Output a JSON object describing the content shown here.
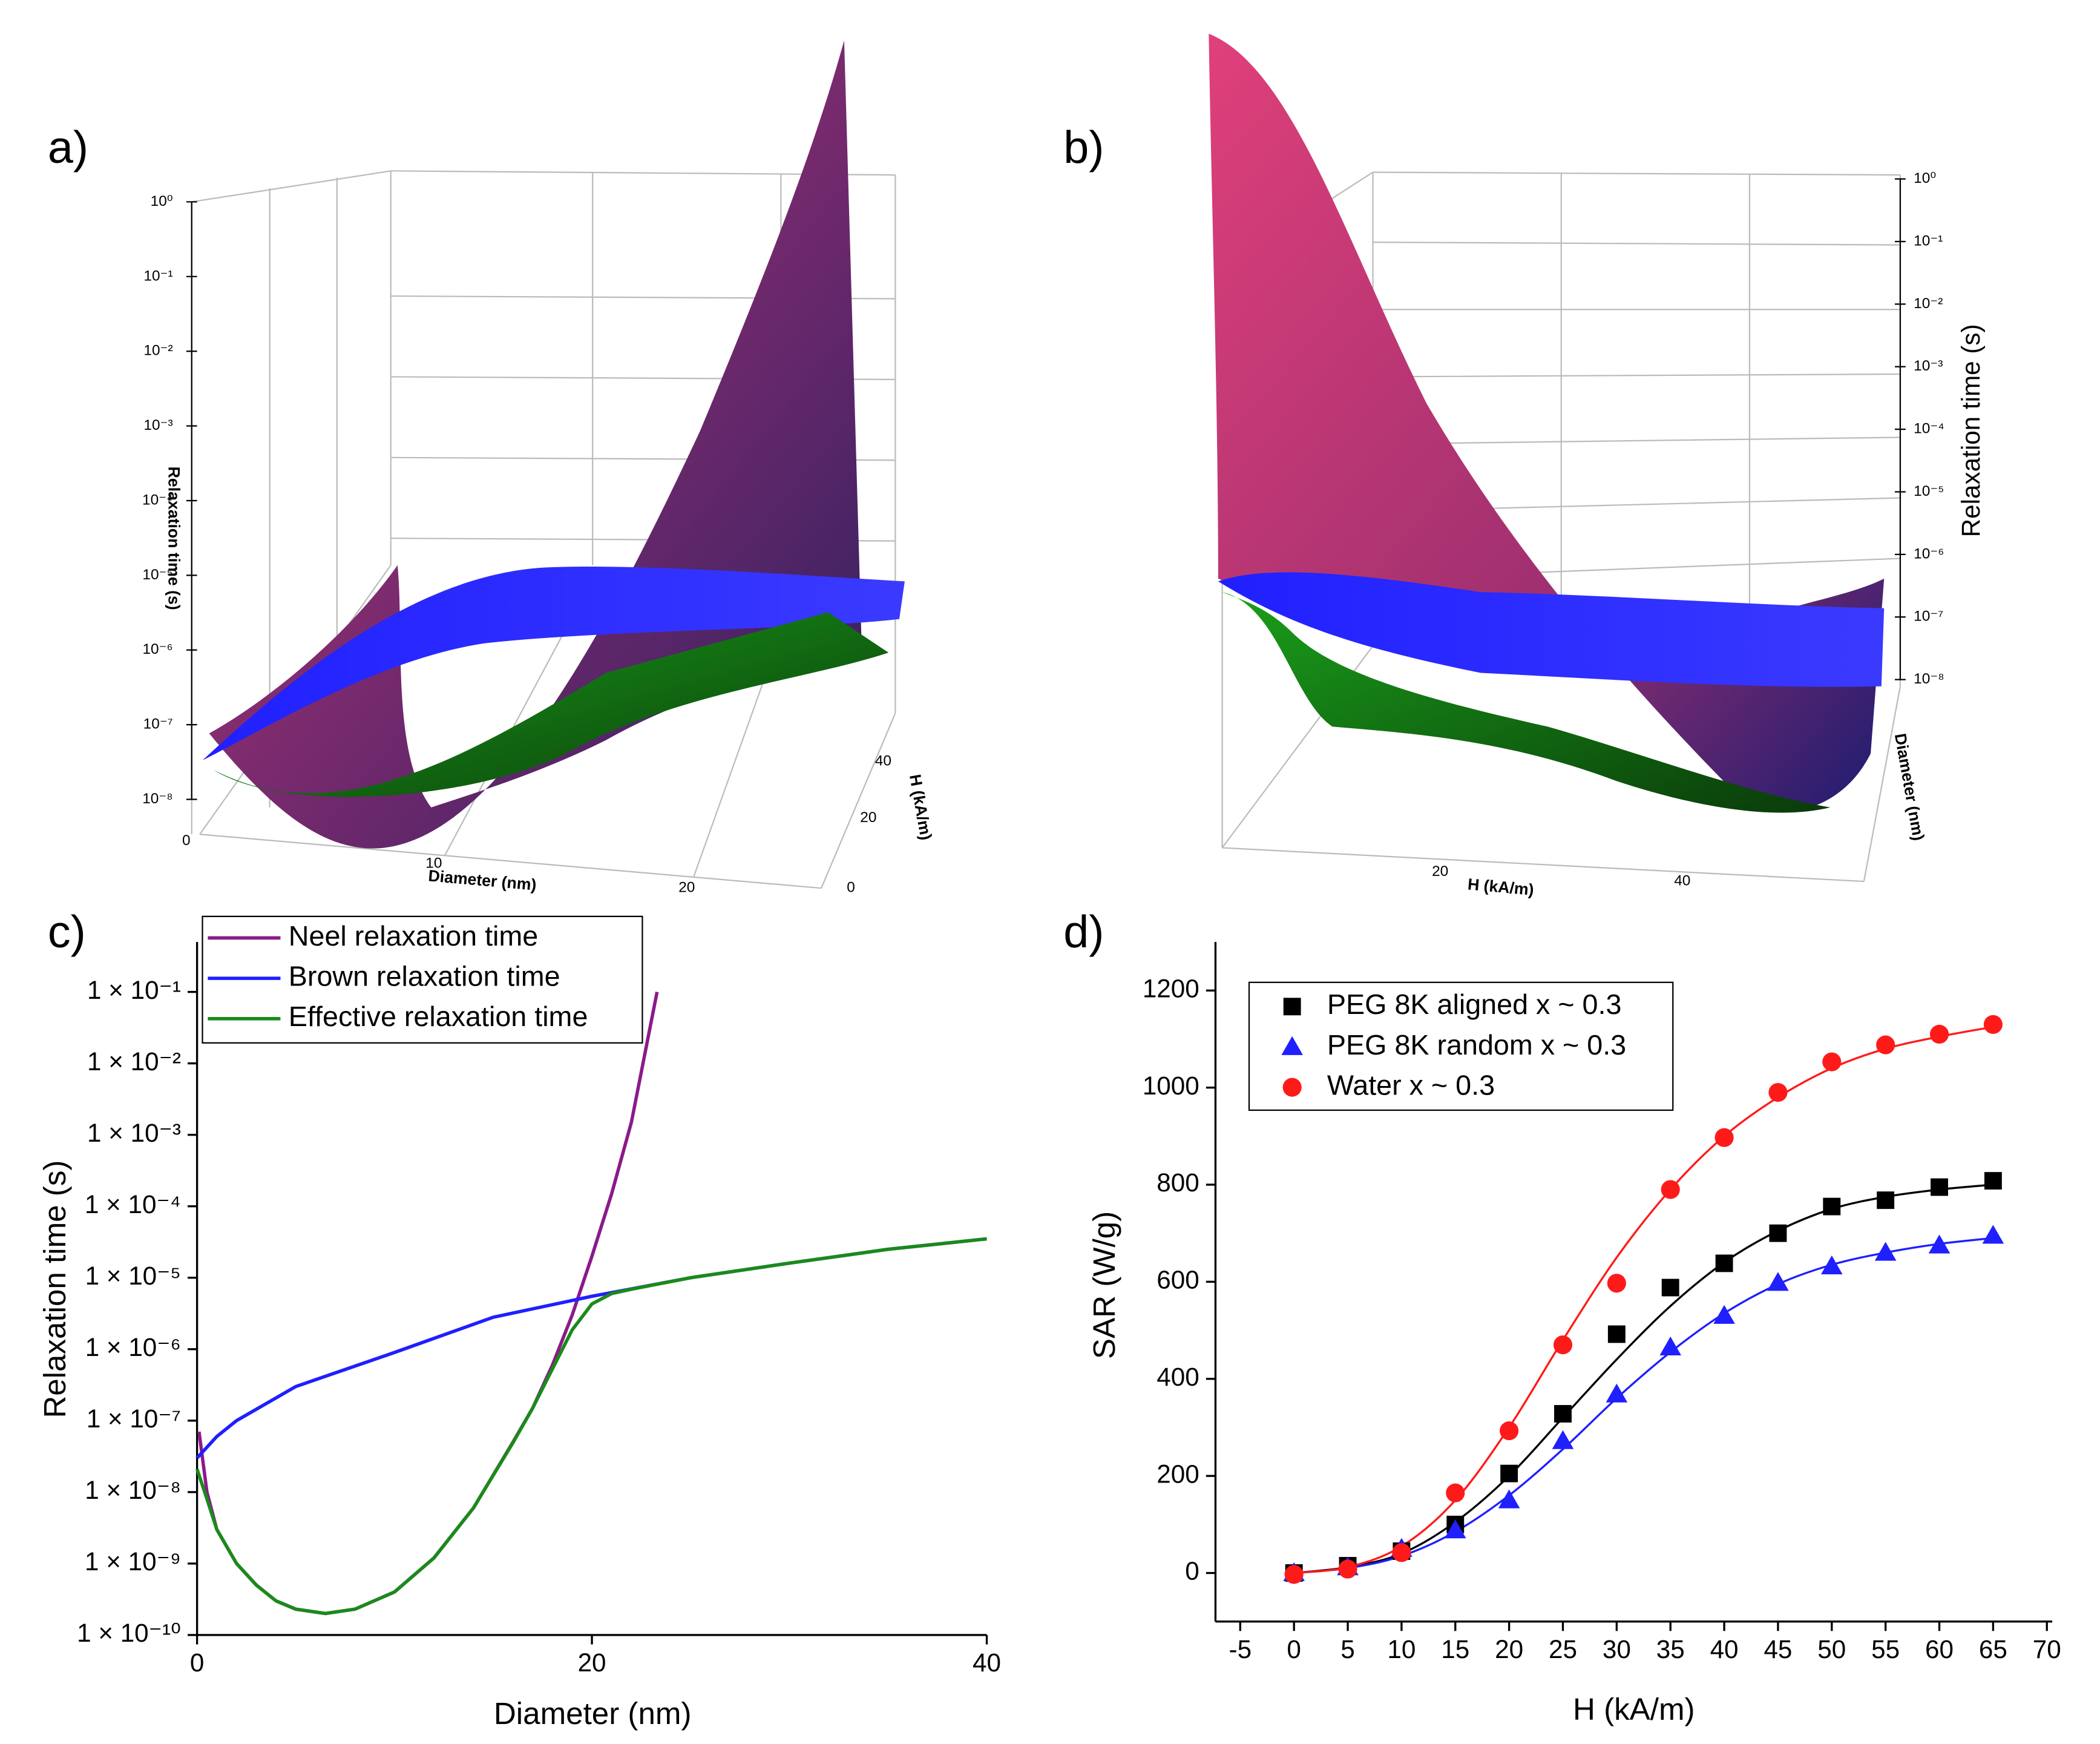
{
  "chart_data": [
    {
      "type": "surface3d",
      "label": "a)",
      "zlabel": "Relaxation time (s)",
      "zlog": true,
      "zticks": [
        {
          "value": 1,
          "label": "10⁰"
        },
        {
          "value": 0.1,
          "label": "10⁻¹"
        },
        {
          "value": 0.01,
          "label": "10⁻²"
        },
        {
          "value": 0.001,
          "label": "10⁻³"
        },
        {
          "value": 0.0001,
          "label": "10⁻⁴"
        },
        {
          "value": 1e-05,
          "label": "10⁻⁵"
        },
        {
          "value": 1e-06,
          "label": "10⁻⁶"
        },
        {
          "value": 1e-07,
          "label": "10⁻⁷"
        },
        {
          "value": 1e-08,
          "label": "10⁻⁸"
        }
      ],
      "xlabel": "Diameter (nm)",
      "xticks": [
        0,
        10,
        20
      ],
      "ylabel": "H (kA/m)",
      "yticks": [
        0,
        20,
        40
      ]
    },
    {
      "type": "surface3d",
      "label": "b)",
      "zlabel": "Relaxation time (s)",
      "zlog": true,
      "zticks": [
        {
          "value": 1,
          "label": "10⁰"
        },
        {
          "value": 0.1,
          "label": "10⁻¹"
        },
        {
          "value": 0.01,
          "label": "10⁻²"
        },
        {
          "value": 0.001,
          "label": "10⁻³"
        },
        {
          "value": 0.0001,
          "label": "10⁻⁴"
        },
        {
          "value": 1e-05,
          "label": "10⁻⁵"
        },
        {
          "value": 1e-06,
          "label": "10⁻⁶"
        },
        {
          "value": 1e-07,
          "label": "10⁻⁷"
        },
        {
          "value": 1e-08,
          "label": "10⁻⁸"
        }
      ],
      "xlabel": "H (kA/m)",
      "xticks": [
        20,
        40
      ],
      "ylabel": "Diameter (nm)"
    },
    {
      "type": "line",
      "label": "c)",
      "xlabel": "Diameter (nm)",
      "ylabel": "Relaxation time (s)",
      "ylog": true,
      "xlim": [
        0,
        40
      ],
      "xticks": [
        0,
        20,
        40
      ],
      "ylim": [
        1e-10,
        0.5
      ],
      "yticks": [
        {
          "value": 1e-10,
          "label": "1 × 10⁻¹⁰"
        },
        {
          "value": 1e-09,
          "label": "1 × 10⁻⁹"
        },
        {
          "value": 1e-08,
          "label": "1 × 10⁻⁸"
        },
        {
          "value": 1e-07,
          "label": "1 × 10⁻⁷"
        },
        {
          "value": 1e-06,
          "label": "1 × 10⁻⁶"
        },
        {
          "value": 1e-05,
          "label": "1 × 10⁻⁵"
        },
        {
          "value": 0.0001,
          "label": "1 × 10⁻⁴"
        },
        {
          "value": 0.001,
          "label": "1 × 10⁻³"
        },
        {
          "value": 0.01,
          "label": "1 × 10⁻²"
        },
        {
          "value": 0.1,
          "label": "1 × 10⁻¹"
        }
      ],
      "legend": "upper left",
      "series": [
        {
          "name": "Neel relaxation time",
          "color": "#8b1a8b",
          "x": [
            0.1,
            0.5,
            1,
            2,
            3,
            4,
            5,
            6.5,
            8,
            10,
            12,
            14,
            16,
            17,
            18,
            19,
            20,
            21,
            22,
            23.3
          ],
          "values": [
            7e-08,
            1e-08,
            3e-09,
            1e-09,
            5e-10,
            3e-10,
            2.3e-10,
            2e-10,
            2.3e-10,
            4e-10,
            1.2e-09,
            6e-09,
            5e-08,
            1.5e-07,
            6e-07,
            3e-06,
            2e-05,
            0.00015,
            0.0015,
            0.1
          ]
        },
        {
          "name": "Brown relaxation time",
          "color": "#1f1fff",
          "x": [
            0,
            1,
            2,
            5,
            10,
            15,
            20,
            25,
            30,
            35,
            40
          ],
          "values": [
            3e-08,
            6e-08,
            1e-07,
            3e-07,
            9e-07,
            2.8e-06,
            5.5e-06,
            1e-05,
            1.6e-05,
            2.5e-05,
            3.5e-05
          ]
        },
        {
          "name": "Effective relaxation time",
          "color": "#1a8a1a",
          "x": [
            0,
            0.5,
            1,
            2,
            3,
            4,
            5,
            6.5,
            8,
            10,
            12,
            14,
            16,
            17,
            18,
            19,
            20,
            21,
            22,
            25,
            30,
            35,
            40
          ],
          "values": [
            2.1e-08,
            8e-09,
            3e-09,
            1e-09,
            5e-10,
            3e-10,
            2.3e-10,
            2e-10,
            2.3e-10,
            4e-10,
            1.2e-09,
            6e-09,
            4.9e-08,
            1.5e-07,
            5.3e-07,
            1.86e-06,
            4.3e-06,
            6e-06,
            6.9e-06,
            1e-05,
            1.6e-05,
            2.5e-05,
            3.5e-05
          ]
        }
      ]
    },
    {
      "type": "scatter",
      "label": "d)",
      "xlabel": "H (kA/m)",
      "ylabel": "SAR (W/g)",
      "xlim": [
        -7.3,
        70.5
      ],
      "xticks": [
        -5,
        0,
        5,
        10,
        15,
        20,
        25,
        30,
        35,
        40,
        45,
        50,
        55,
        60,
        65,
        70
      ],
      "ylim": [
        -100,
        1300
      ],
      "yticks": [
        0,
        200,
        400,
        600,
        800,
        1000,
        1200
      ],
      "legend": "upper left",
      "x": [
        0,
        5,
        10,
        15,
        20,
        25,
        30,
        35,
        40,
        45,
        50,
        55,
        60,
        65
      ],
      "series": [
        {
          "name": "PEG 8K aligned x ~ 0.3",
          "color": "#000000",
          "marker": "square",
          "values": [
            0,
            15,
            45,
            100,
            205,
            328,
            492,
            588,
            638,
            700,
            755,
            768,
            795,
            808
          ],
          "fit": [
            0,
            12,
            40,
            105,
            200,
            320,
            440,
            550,
            640,
            705,
            750,
            775,
            790,
            800
          ]
        },
        {
          "name": "PEG 8K random x ~ 0.3",
          "color": "#1f1fff",
          "marker": "triangle",
          "values": [
            0,
            12,
            50,
            88,
            150,
            272,
            368,
            465,
            530,
            598,
            632,
            660,
            675,
            695
          ],
          "fit": [
            0,
            10,
            35,
            85,
            160,
            255,
            360,
            455,
            535,
            595,
            635,
            660,
            678,
            690
          ]
        },
        {
          "name": "Water x ~ 0.3",
          "color": "#ff1a1a",
          "marker": "circle",
          "values": [
            -3,
            8,
            42,
            165,
            293,
            470,
            597,
            790,
            897,
            990,
            1053,
            1088,
            1110,
            1130
          ],
          "fit": [
            0,
            12,
            55,
            150,
            300,
            480,
            650,
            790,
            900,
            980,
            1040,
            1080,
            1105,
            1125
          ]
        }
      ]
    }
  ]
}
